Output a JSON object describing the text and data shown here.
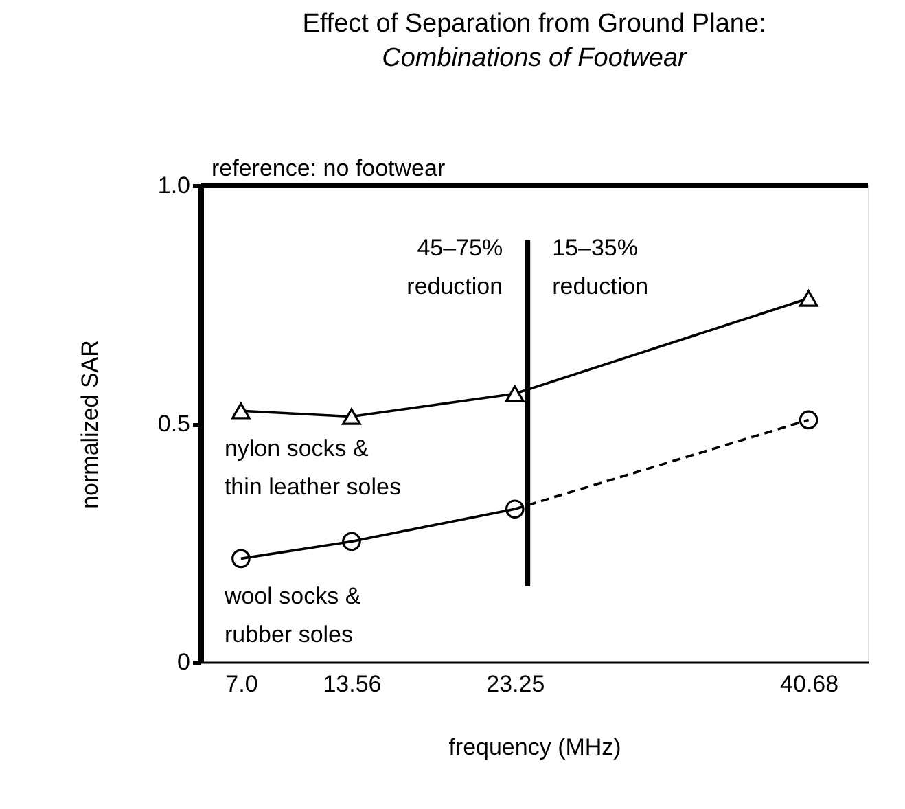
{
  "chart_data": {
    "type": "line",
    "title": "Effect of Separation from Ground Plane:",
    "subtitle": "Combinations of Footwear",
    "xlabel": "frequency (MHz)",
    "ylabel": "normalized SAR",
    "xlim": [
      4.6,
      44.2
    ],
    "xticks": [
      {
        "value": 7,
        "label": "7.0"
      },
      13.56,
      23.25,
      40.68
    ],
    "ylim": [
      0,
      1
    ],
    "yticks": [
      0,
      0.5,
      {
        "value": 1,
        "label": "1.0"
      }
    ],
    "series": [
      {
        "name": "nylon socks &\nthin leather soles",
        "color": "#000000",
        "x": [
          7,
          13.56,
          23.25,
          40.68
        ],
        "values": [
          0.527,
          0.515,
          0.563,
          0.763
        ],
        "marker": "triangle",
        "line_style": "solid"
      },
      {
        "name": "wool socks &\nrubber soles",
        "type": "scatter",
        "color": "#000000",
        "x": [
          7,
          13.56,
          23.25,
          40.68
        ],
        "values": [
          0.217,
          0.253,
          0.321,
          0.508
        ],
        "marker": "circle"
      },
      {
        "color": "#000000",
        "x": [
          7,
          13.56,
          23.25
        ],
        "values": [
          0.217,
          0.253,
          0.321
        ],
        "marker": "none",
        "line_style": "solid"
      },
      {
        "color": "#000000",
        "x": [
          23.25,
          40.68
        ],
        "values": [
          0.321,
          0.508
        ],
        "marker": "none",
        "line_style": "dashed"
      }
    ],
    "ref_lines": [
      {
        "axis": "y",
        "value": 1,
        "label": "reference: no footwear",
        "color": "#000000"
      },
      {
        "axis": "x",
        "value": 24,
        "color": "#000000"
      }
    ],
    "annotations": [
      "45–75%\nreduction",
      "15–35%\nreduction"
    ],
    "grid": false
  }
}
